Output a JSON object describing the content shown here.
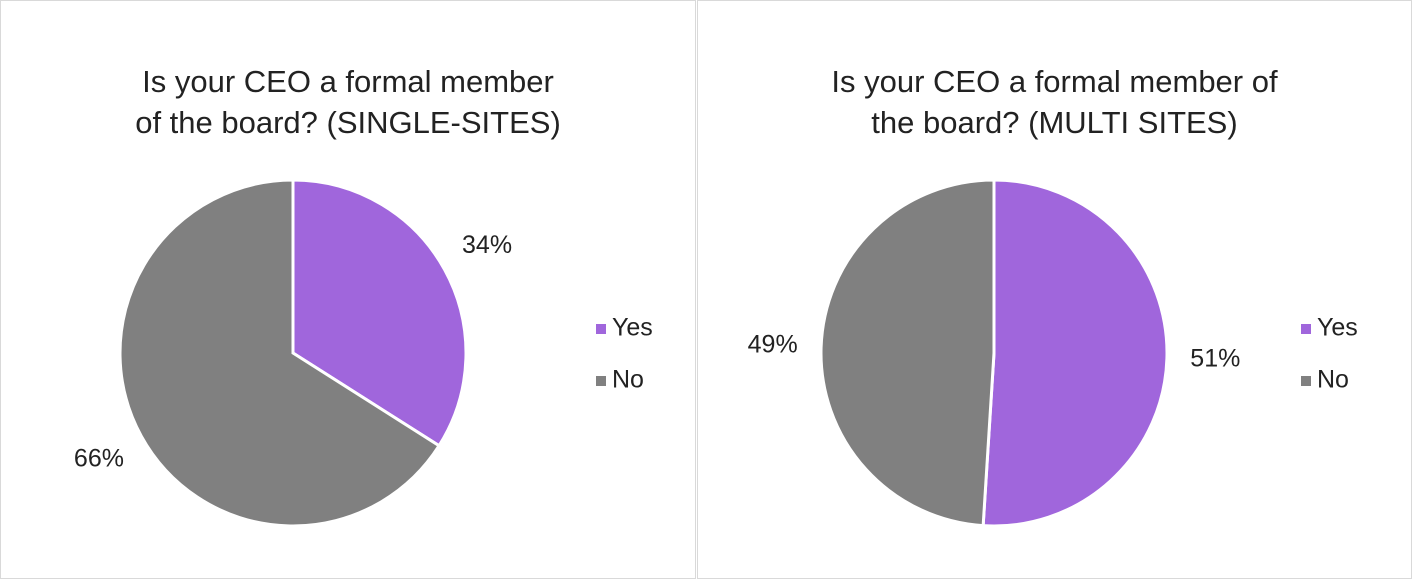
{
  "chart_data": [
    {
      "type": "pie",
      "title": "Is your CEO a formal member\nof the board? (SINGLE-SITES)",
      "categories": [
        "Yes",
        "No"
      ],
      "values": [
        34,
        66
      ],
      "value_labels": [
        "34%",
        "66%"
      ],
      "colors": [
        "#a066dc",
        "#808080"
      ],
      "legend": "right"
    },
    {
      "type": "pie",
      "title": "Is your CEO a formal member of\nthe board?  (MULTI SITES)",
      "categories": [
        "Yes",
        "No"
      ],
      "values": [
        51,
        49
      ],
      "value_labels": [
        "51%",
        "49%"
      ],
      "colors": [
        "#a066dc",
        "#808080"
      ],
      "legend": "right"
    }
  ]
}
